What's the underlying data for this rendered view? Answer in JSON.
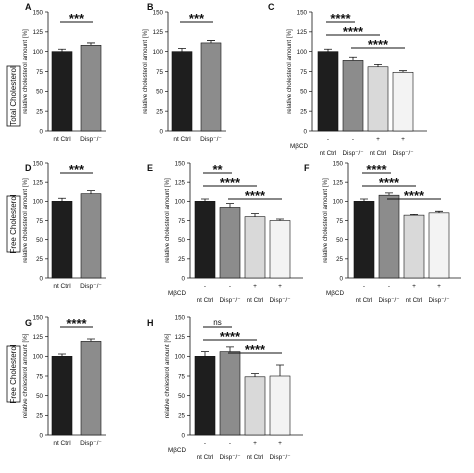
{
  "row_labels": [
    "Total Cholesterol",
    "Free Cholesterol",
    "Free Cholesterol"
  ],
  "colors": {
    "nt_ctrl": "#1e1e1e",
    "disp": "#8c8c8c",
    "nt_ctrl_mbcd": "#d9d9d9",
    "disp_mbcd": "#f3f3f3"
  },
  "chart_data": [
    {
      "panel": "A",
      "type": "bar",
      "ylabel": "relative cholesterol amount [%]",
      "ylim": [
        0,
        150
      ],
      "yticks": [
        0,
        25,
        50,
        75,
        100,
        125,
        150
      ],
      "categories": [
        "nt Ctrl",
        "Disp⁻/⁻"
      ],
      "values": [
        100,
        108
      ],
      "errors": [
        3,
        3
      ],
      "colors": [
        "nt_ctrl",
        "disp"
      ],
      "significance": [
        {
          "from": 0,
          "to": 1,
          "label": "***"
        }
      ]
    },
    {
      "panel": "B",
      "type": "bar",
      "ylabel": "relative cholesterol amount [%]",
      "ylim": [
        0,
        150
      ],
      "yticks": [
        0,
        25,
        50,
        75,
        100,
        125,
        150
      ],
      "categories": [
        "nt Ctrl",
        "Disp⁻/⁻"
      ],
      "values": [
        100,
        111
      ],
      "errors": [
        4,
        3
      ],
      "colors": [
        "nt_ctrl",
        "disp"
      ],
      "significance": [
        {
          "from": 0,
          "to": 1,
          "label": "***"
        }
      ]
    },
    {
      "panel": "C",
      "type": "bar",
      "ylabel": "relative cholesterol amount [%]",
      "ylim": [
        0,
        150
      ],
      "yticks": [
        0,
        25,
        50,
        75,
        100,
        125,
        150
      ],
      "categories": [
        "nt Ctrl",
        "Disp⁻/⁻",
        "nt Ctrl",
        "Disp⁻/⁻"
      ],
      "values": [
        100,
        89,
        81,
        74
      ],
      "errors": [
        3,
        4,
        3,
        2
      ],
      "colors": [
        "nt_ctrl",
        "disp",
        "nt_ctrl_mbcd",
        "disp_mbcd"
      ],
      "treatment_label": "MβCD",
      "treatment": [
        "-",
        "-",
        "+",
        "+"
      ],
      "significance": [
        {
          "from": 0,
          "to": 1,
          "label": "****"
        },
        {
          "from": 0,
          "to": 2,
          "label": "****"
        },
        {
          "from": 1,
          "to": 3,
          "label": "****"
        }
      ]
    },
    {
      "panel": "D",
      "type": "bar",
      "ylabel": "relative cholesterol amount [%]",
      "ylim": [
        0,
        150
      ],
      "yticks": [
        0,
        25,
        50,
        75,
        100,
        125,
        150
      ],
      "categories": [
        "nt Ctrl",
        "Disp⁻/⁻"
      ],
      "values": [
        100,
        110
      ],
      "errors": [
        4,
        4
      ],
      "colors": [
        "nt_ctrl",
        "disp"
      ],
      "significance": [
        {
          "from": 0,
          "to": 1,
          "label": "***"
        }
      ]
    },
    {
      "panel": "E",
      "type": "bar",
      "ylabel": "relative cholesterol amount [%]",
      "ylim": [
        0,
        150
      ],
      "yticks": [
        0,
        25,
        50,
        75,
        100,
        125,
        150
      ],
      "categories": [
        "nt Ctrl",
        "Disp⁻/⁻",
        "nt Ctrl",
        "Disp⁻/⁻"
      ],
      "values": [
        100,
        92,
        80,
        75
      ],
      "errors": [
        3,
        5,
        4,
        2
      ],
      "colors": [
        "nt_ctrl",
        "disp",
        "nt_ctrl_mbcd",
        "disp_mbcd"
      ],
      "treatment_label": "MβCD",
      "treatment": [
        "-",
        "-",
        "+",
        "+"
      ],
      "significance": [
        {
          "from": 0,
          "to": 1,
          "label": "**"
        },
        {
          "from": 0,
          "to": 2,
          "label": "****"
        },
        {
          "from": 1,
          "to": 3,
          "label": "****"
        }
      ]
    },
    {
      "panel": "F",
      "type": "bar",
      "ylabel": "relative cholesterol amount [%]",
      "ylim": [
        0,
        150
      ],
      "yticks": [
        0,
        25,
        50,
        75,
        100,
        125,
        150
      ],
      "categories": [
        "nt Ctrl",
        "Disp⁻/⁻",
        "nt Ctrl",
        "Disp⁻/⁻"
      ],
      "values": [
        100,
        108,
        82,
        85
      ],
      "errors": [
        3,
        3,
        1,
        2
      ],
      "colors": [
        "nt_ctrl",
        "disp",
        "nt_ctrl_mbcd",
        "disp_mbcd"
      ],
      "treatment_label": "MβCD",
      "treatment": [
        "-",
        "-",
        "+",
        "+"
      ],
      "significance": [
        {
          "from": 0,
          "to": 1,
          "label": "****"
        },
        {
          "from": 0,
          "to": 2,
          "label": "****"
        },
        {
          "from": 1,
          "to": 3,
          "label": "****"
        }
      ]
    },
    {
      "panel": "G",
      "type": "bar",
      "ylabel": "relative cholesterol amount [%]",
      "ylim": [
        0,
        150
      ],
      "yticks": [
        0,
        25,
        50,
        75,
        100,
        125,
        150
      ],
      "categories": [
        "nt Ctrl",
        "Disp⁻/⁻"
      ],
      "values": [
        100,
        119
      ],
      "errors": [
        3,
        3
      ],
      "colors": [
        "nt_ctrl",
        "disp"
      ],
      "significance": [
        {
          "from": 0,
          "to": 1,
          "label": "****"
        }
      ]
    },
    {
      "panel": "H",
      "type": "bar",
      "ylabel": "relative cholesterol amount [%]",
      "ylim": [
        0,
        150
      ],
      "yticks": [
        0,
        25,
        50,
        75,
        100,
        125,
        150
      ],
      "categories": [
        "nt Ctrl",
        "Disp⁻/⁻",
        "nt Ctrl",
        "Disp⁻/⁻"
      ],
      "values": [
        100,
        106,
        74,
        75
      ],
      "errors": [
        6,
        6,
        4,
        14
      ],
      "colors": [
        "nt_ctrl",
        "disp",
        "nt_ctrl_mbcd",
        "disp_mbcd"
      ],
      "treatment_label": "MβCD",
      "treatment": [
        "-",
        "-",
        "+",
        "+"
      ],
      "significance": [
        {
          "from": 0,
          "to": 1,
          "label": "ns"
        },
        {
          "from": 0,
          "to": 2,
          "label": "****"
        },
        {
          "from": 1,
          "to": 3,
          "label": "****"
        }
      ]
    }
  ]
}
